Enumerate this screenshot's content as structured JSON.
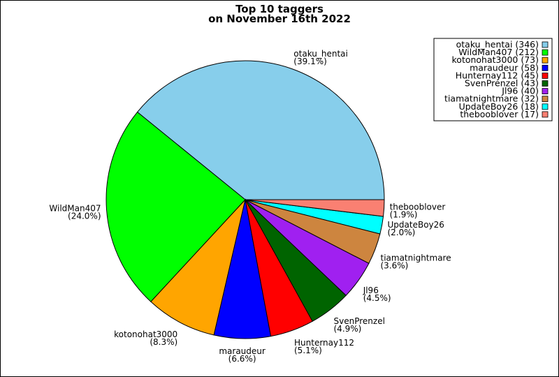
{
  "chart_data": {
    "type": "pie",
    "title": "Top 10 taggers",
    "subtitle": "on November 16th 2022",
    "legend_position": "top-right",
    "slices": [
      {
        "label": "otaku_hentai",
        "value": 346,
        "percent": "39.1%",
        "color": "#87ceeb"
      },
      {
        "label": "WildMan407",
        "value": 212,
        "percent": "24.0%",
        "color": "#00ff00"
      },
      {
        "label": "kotonohat3000",
        "value": 73,
        "percent": "8.3%",
        "color": "#ffa500"
      },
      {
        "label": "maraudeur",
        "value": 58,
        "percent": "6.6%",
        "color": "#0000ff"
      },
      {
        "label": "Hunternay112",
        "value": 45,
        "percent": "5.1%",
        "color": "#ff0000"
      },
      {
        "label": "SvenPrenzel",
        "value": 43,
        "percent": "4.9%",
        "color": "#006400"
      },
      {
        "label": "Jl96",
        "value": 40,
        "percent": "4.5%",
        "color": "#a020f0"
      },
      {
        "label": "tiamatnightmare",
        "value": 32,
        "percent": "3.6%",
        "color": "#cd853f"
      },
      {
        "label": "UpdateBoy26",
        "value": 18,
        "percent": "2.0%",
        "color": "#00ffff"
      },
      {
        "label": "thebooblover",
        "value": 17,
        "percent": "1.9%",
        "color": "#fa8072"
      }
    ]
  }
}
